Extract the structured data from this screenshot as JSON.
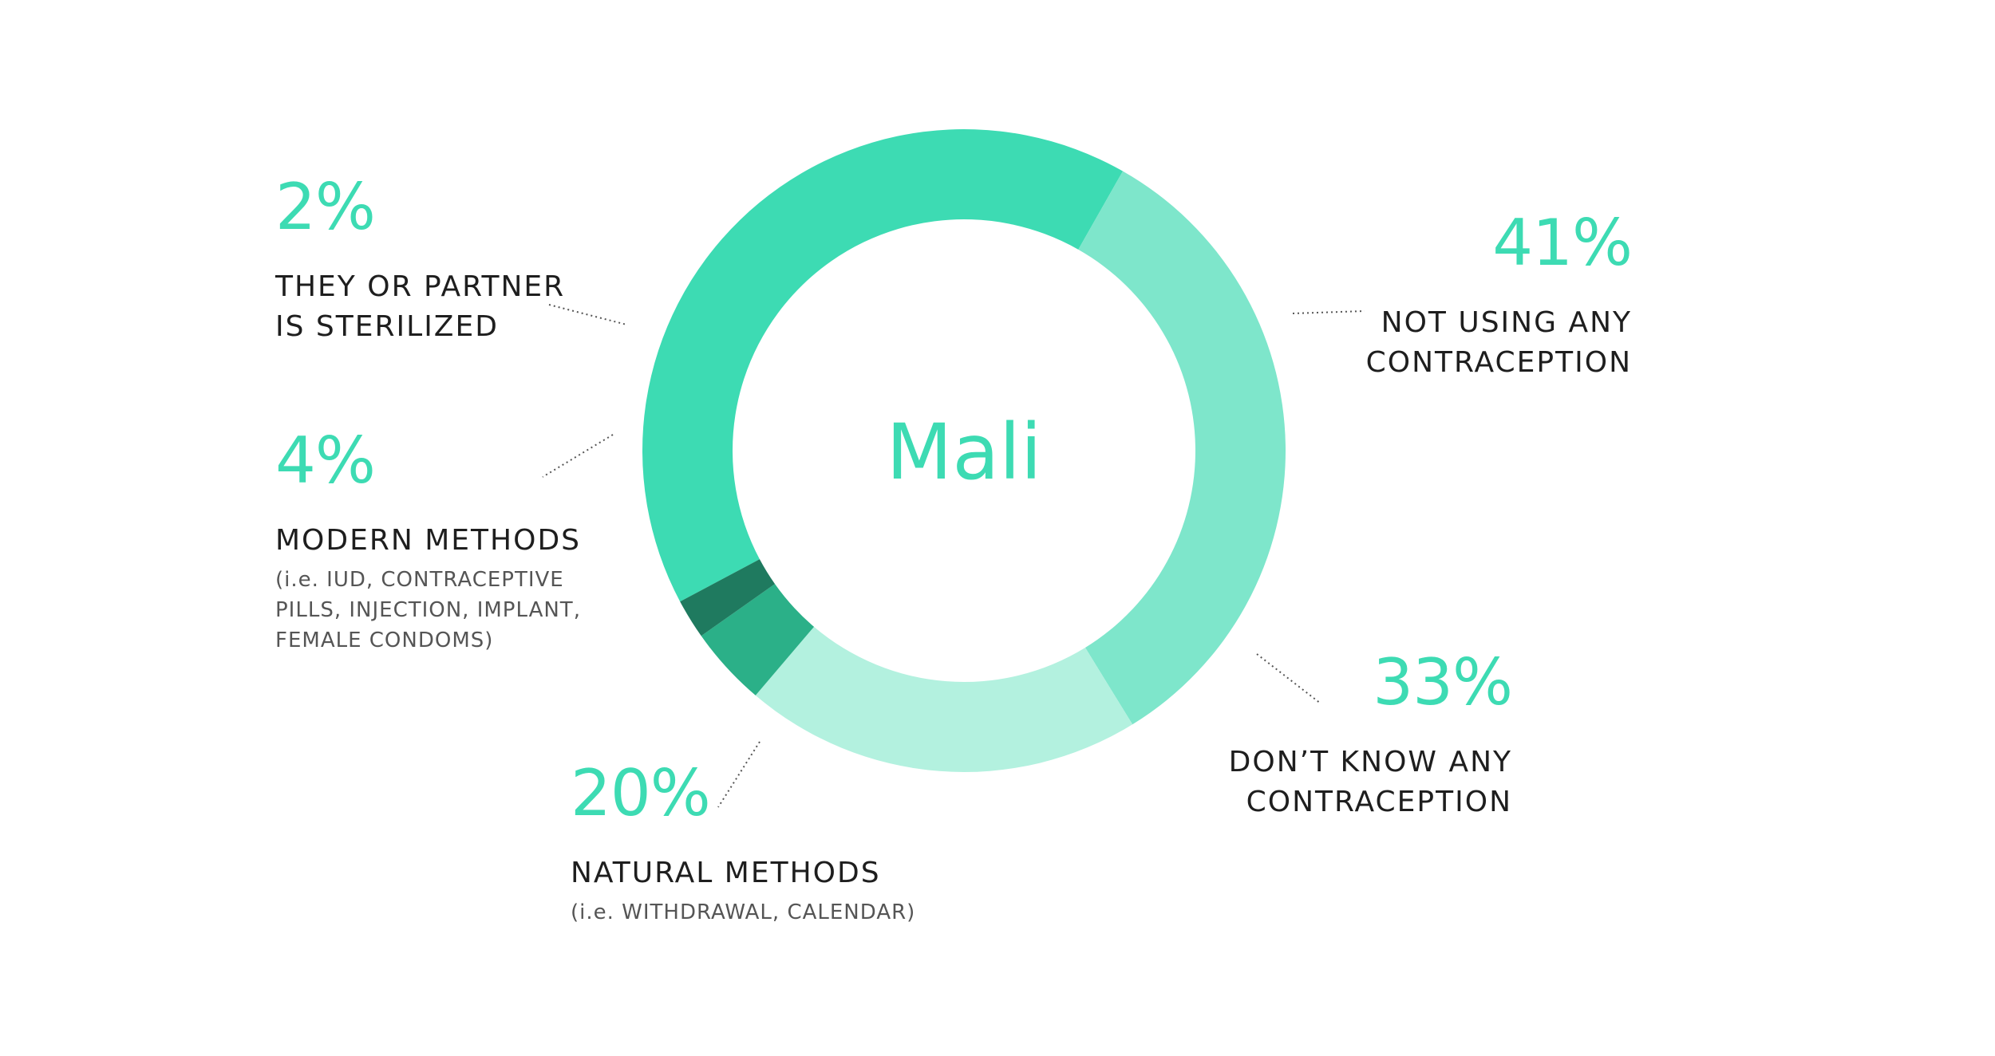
{
  "chart_data": {
    "type": "pie",
    "donut": true,
    "center_label": "Mali",
    "slices": [
      {
        "value": 41,
        "label_value": "41%",
        "label_lines": [
          "NOT USING ANY",
          "CONTRACEPTION"
        ],
        "sub_lines": [],
        "color": "#3ddbb3"
      },
      {
        "value": 33,
        "label_value": "33%",
        "label_lines": [
          "DON’T KNOW ANY",
          "CONTRACEPTION"
        ],
        "sub_lines": [],
        "color": "#7ee6cb"
      },
      {
        "value": 20,
        "label_value": "20%",
        "label_lines": [
          "NATURAL METHODS"
        ],
        "sub_lines": [
          "(i.e. WITHDRAWAL, CALENDAR)"
        ],
        "color": "#b3f1df"
      },
      {
        "value": 4,
        "label_value": "4%",
        "label_lines": [
          "MODERN METHODS"
        ],
        "sub_lines": [
          "(i.e. IUD, CONTRACEPTIVE",
          "PILLS, INJECTION, IMPLANT,",
          "FEMALE CONDOMS)"
        ],
        "color": "#2bb088"
      },
      {
        "value": 2,
        "label_value": "2%",
        "label_lines": [
          "THEY OR PARTNER",
          "IS STERILIZED"
        ],
        "sub_lines": [],
        "color": "#1f7a5f"
      }
    ]
  }
}
